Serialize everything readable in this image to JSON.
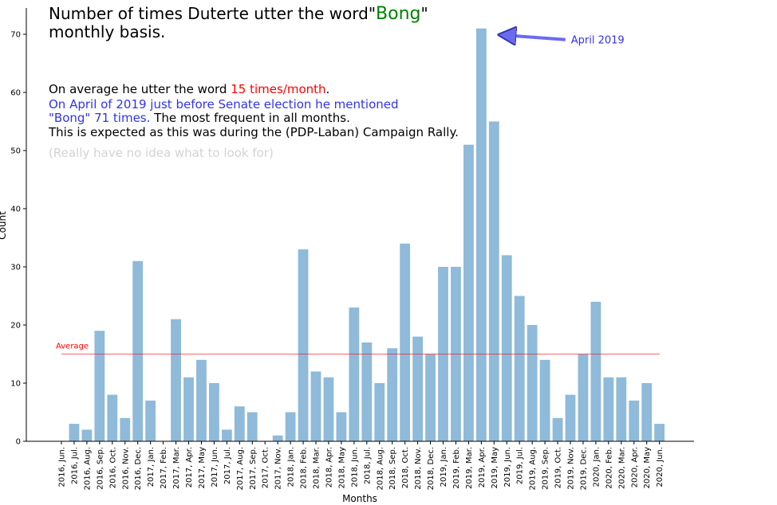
{
  "chart_data": {
    "type": "bar",
    "title_part1": "Number of times Duterte utter the word",
    "title_quote_open": "\"",
    "title_word": "Bong",
    "title_quote_close": "\"",
    "title_line2": "monthly basis.",
    "xlabel": "Months",
    "ylabel": "Count",
    "ylim": [
      0,
      74
    ],
    "yticks": [
      0,
      10,
      20,
      30,
      40,
      50,
      60,
      70
    ],
    "categories": [
      "2016, Jun.",
      "2016, Jul.",
      "2016, Aug.",
      "2016, Sep.",
      "2016, Oct.",
      "2016, Nov.",
      "2016, Dec.",
      "2017, Jan.",
      "2017, Feb.",
      "2017, Mar.",
      "2017, Apr.",
      "2017, May",
      "2017, Jun.",
      "2017, Jul.",
      "2017, Aug.",
      "2017, Sep.",
      "2017, Oct.",
      "2017, Nov.",
      "2018, Jan.",
      "2018, Feb.",
      "2018, Mar.",
      "2018, Apr.",
      "2018, May",
      "2018, Jun.",
      "2018, Jul.",
      "2018, Aug.",
      "2018, Sep.",
      "2018, Oct.",
      "2018, Nov.",
      "2018, Dec.",
      "2019, Jan.",
      "2019, Feb.",
      "2019, Mar.",
      "2019, Apr.",
      "2019, May",
      "2019, Jun.",
      "2019, Jul.",
      "2019, Aug.",
      "2019, Sep.",
      "2019, Oct.",
      "2019, Nov.",
      "2019, Dec.",
      "2020, Jan.",
      "2020, Feb.",
      "2020, Mar.",
      "2020, Apr.",
      "2020, May",
      "2020, Jun."
    ],
    "values": [
      0,
      3,
      2,
      19,
      8,
      4,
      31,
      7,
      0,
      21,
      11,
      14,
      10,
      2,
      6,
      5,
      0,
      1,
      5,
      33,
      12,
      11,
      5,
      23,
      17,
      10,
      16,
      34,
      18,
      15,
      30,
      30,
      51,
      71,
      55,
      32,
      25,
      20,
      14,
      4,
      8,
      15,
      24,
      11,
      11,
      7,
      10,
      3
    ],
    "average": 15,
    "average_label": "Average",
    "bar_color": "#8fbad9",
    "average_color": "#ff0000",
    "annotation": {
      "text": "April 2019",
      "target": "2019, Apr.",
      "color": "#3333ee"
    },
    "note_line1_prefix": "On average he utter the word ",
    "note_line1_highlight": "15 times/month",
    "note_line1_suffix": ".",
    "note_line2": "On April of 2019 just before Senate election he mentioned",
    "note_line3_highlight": "\"Bong\" 71 times.",
    "note_line3_suffix": " The most frequent in all months.",
    "note_line4": "This is expected as this was during the (PDP-Laban) Campaign Rally.",
    "note_line5": "(Really have no idea what to look for)"
  }
}
